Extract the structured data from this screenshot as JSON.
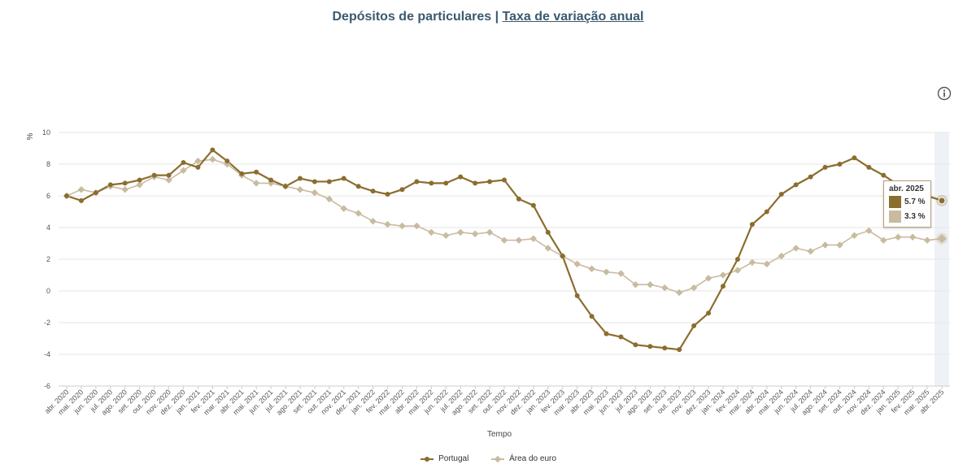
{
  "header": {
    "title_part1": "Depósitos de particulares | ",
    "title_link": "Taxa de variação anual"
  },
  "colors": {
    "portugal": "#8b6d2e",
    "euro": "#c9bba0",
    "highlight_band": "#eef1f6",
    "grid": "#e6e6e6"
  },
  "info_icon": "info-circle-icon",
  "tooltip": {
    "title": "abr. 2025",
    "rows": [
      {
        "value": "5.7 %",
        "color": "#8b6d2e"
      },
      {
        "value": "3.3 %",
        "color": "#c9bba0"
      }
    ]
  },
  "chart_data": {
    "type": "line",
    "ylabel": "%",
    "xlabel": "Tempo",
    "ylim": [
      -6,
      10
    ],
    "yticks": [
      -6,
      -4,
      -2,
      0,
      2,
      4,
      6,
      8,
      10
    ],
    "grid": true,
    "legend_position": "bottom-center",
    "categories": [
      "abr. 2020",
      "mai. 2020",
      "jun. 2020",
      "jul. 2020",
      "ago. 2020",
      "set. 2020",
      "out. 2020",
      "nov. 2020",
      "dez. 2020",
      "jan. 2021",
      "fev. 2021",
      "mar. 2021",
      "abr. 2021",
      "mai. 2021",
      "jun. 2021",
      "jul. 2021",
      "ago. 2021",
      "set. 2021",
      "out. 2021",
      "nov. 2021",
      "dez. 2021",
      "jan. 2022",
      "fev. 2022",
      "mar. 2022",
      "abr. 2022",
      "mai. 2022",
      "jun. 2022",
      "jul. 2022",
      "ago. 2022",
      "set. 2022",
      "out. 2022",
      "nov. 2022",
      "dez. 2022",
      "jan. 2023",
      "fev. 2023",
      "mar. 2023",
      "abr. 2023",
      "mai. 2023",
      "jun. 2023",
      "jul. 2023",
      "ago. 2023",
      "set. 2023",
      "out. 2023",
      "nov. 2023",
      "dez. 2023",
      "jan. 2024",
      "fev. 2024",
      "mar. 2024",
      "abr. 2024",
      "mai. 2024",
      "jun. 2024",
      "jul. 2024",
      "ago. 2024",
      "set. 2024",
      "out. 2024",
      "nov. 2024",
      "dez. 2024",
      "jan. 2025",
      "fev. 2025",
      "mar. 2025",
      "abr. 2025"
    ],
    "series": [
      {
        "name": "Portugal",
        "values": [
          6.0,
          5.7,
          6.2,
          6.7,
          6.8,
          7.0,
          7.3,
          7.3,
          8.1,
          7.8,
          8.9,
          8.2,
          7.4,
          7.5,
          7.0,
          6.6,
          7.1,
          6.9,
          6.9,
          7.1,
          6.6,
          6.3,
          6.1,
          6.4,
          6.9,
          6.8,
          6.8,
          7.2,
          6.8,
          6.9,
          7.0,
          5.8,
          5.4,
          3.7,
          2.2,
          -0.3,
          -1.6,
          -2.7,
          -2.9,
          -3.4,
          -3.5,
          -3.6,
          -3.7,
          -2.2,
          -1.4,
          0.3,
          2.0,
          4.2,
          5.0,
          6.1,
          6.7,
          7.2,
          7.8,
          8.0,
          8.4,
          7.8,
          7.3,
          6.7,
          6.4,
          6.0,
          5.7
        ]
      },
      {
        "name": "Área do euro",
        "values": [
          6.0,
          6.4,
          6.2,
          6.6,
          6.4,
          6.7,
          7.2,
          7.0,
          7.6,
          8.2,
          8.3,
          8.0,
          7.3,
          6.8,
          6.8,
          6.6,
          6.4,
          6.2,
          5.8,
          5.2,
          4.9,
          4.4,
          4.2,
          4.1,
          4.1,
          3.7,
          3.5,
          3.7,
          3.6,
          3.7,
          3.2,
          3.2,
          3.3,
          2.7,
          2.2,
          1.7,
          1.4,
          1.2,
          1.1,
          0.4,
          0.4,
          0.2,
          -0.1,
          0.2,
          0.8,
          1.0,
          1.3,
          1.8,
          1.7,
          2.2,
          2.7,
          2.5,
          2.9,
          2.9,
          3.5,
          3.8,
          3.2,
          3.4,
          3.4,
          3.2,
          3.3
        ]
      }
    ]
  }
}
